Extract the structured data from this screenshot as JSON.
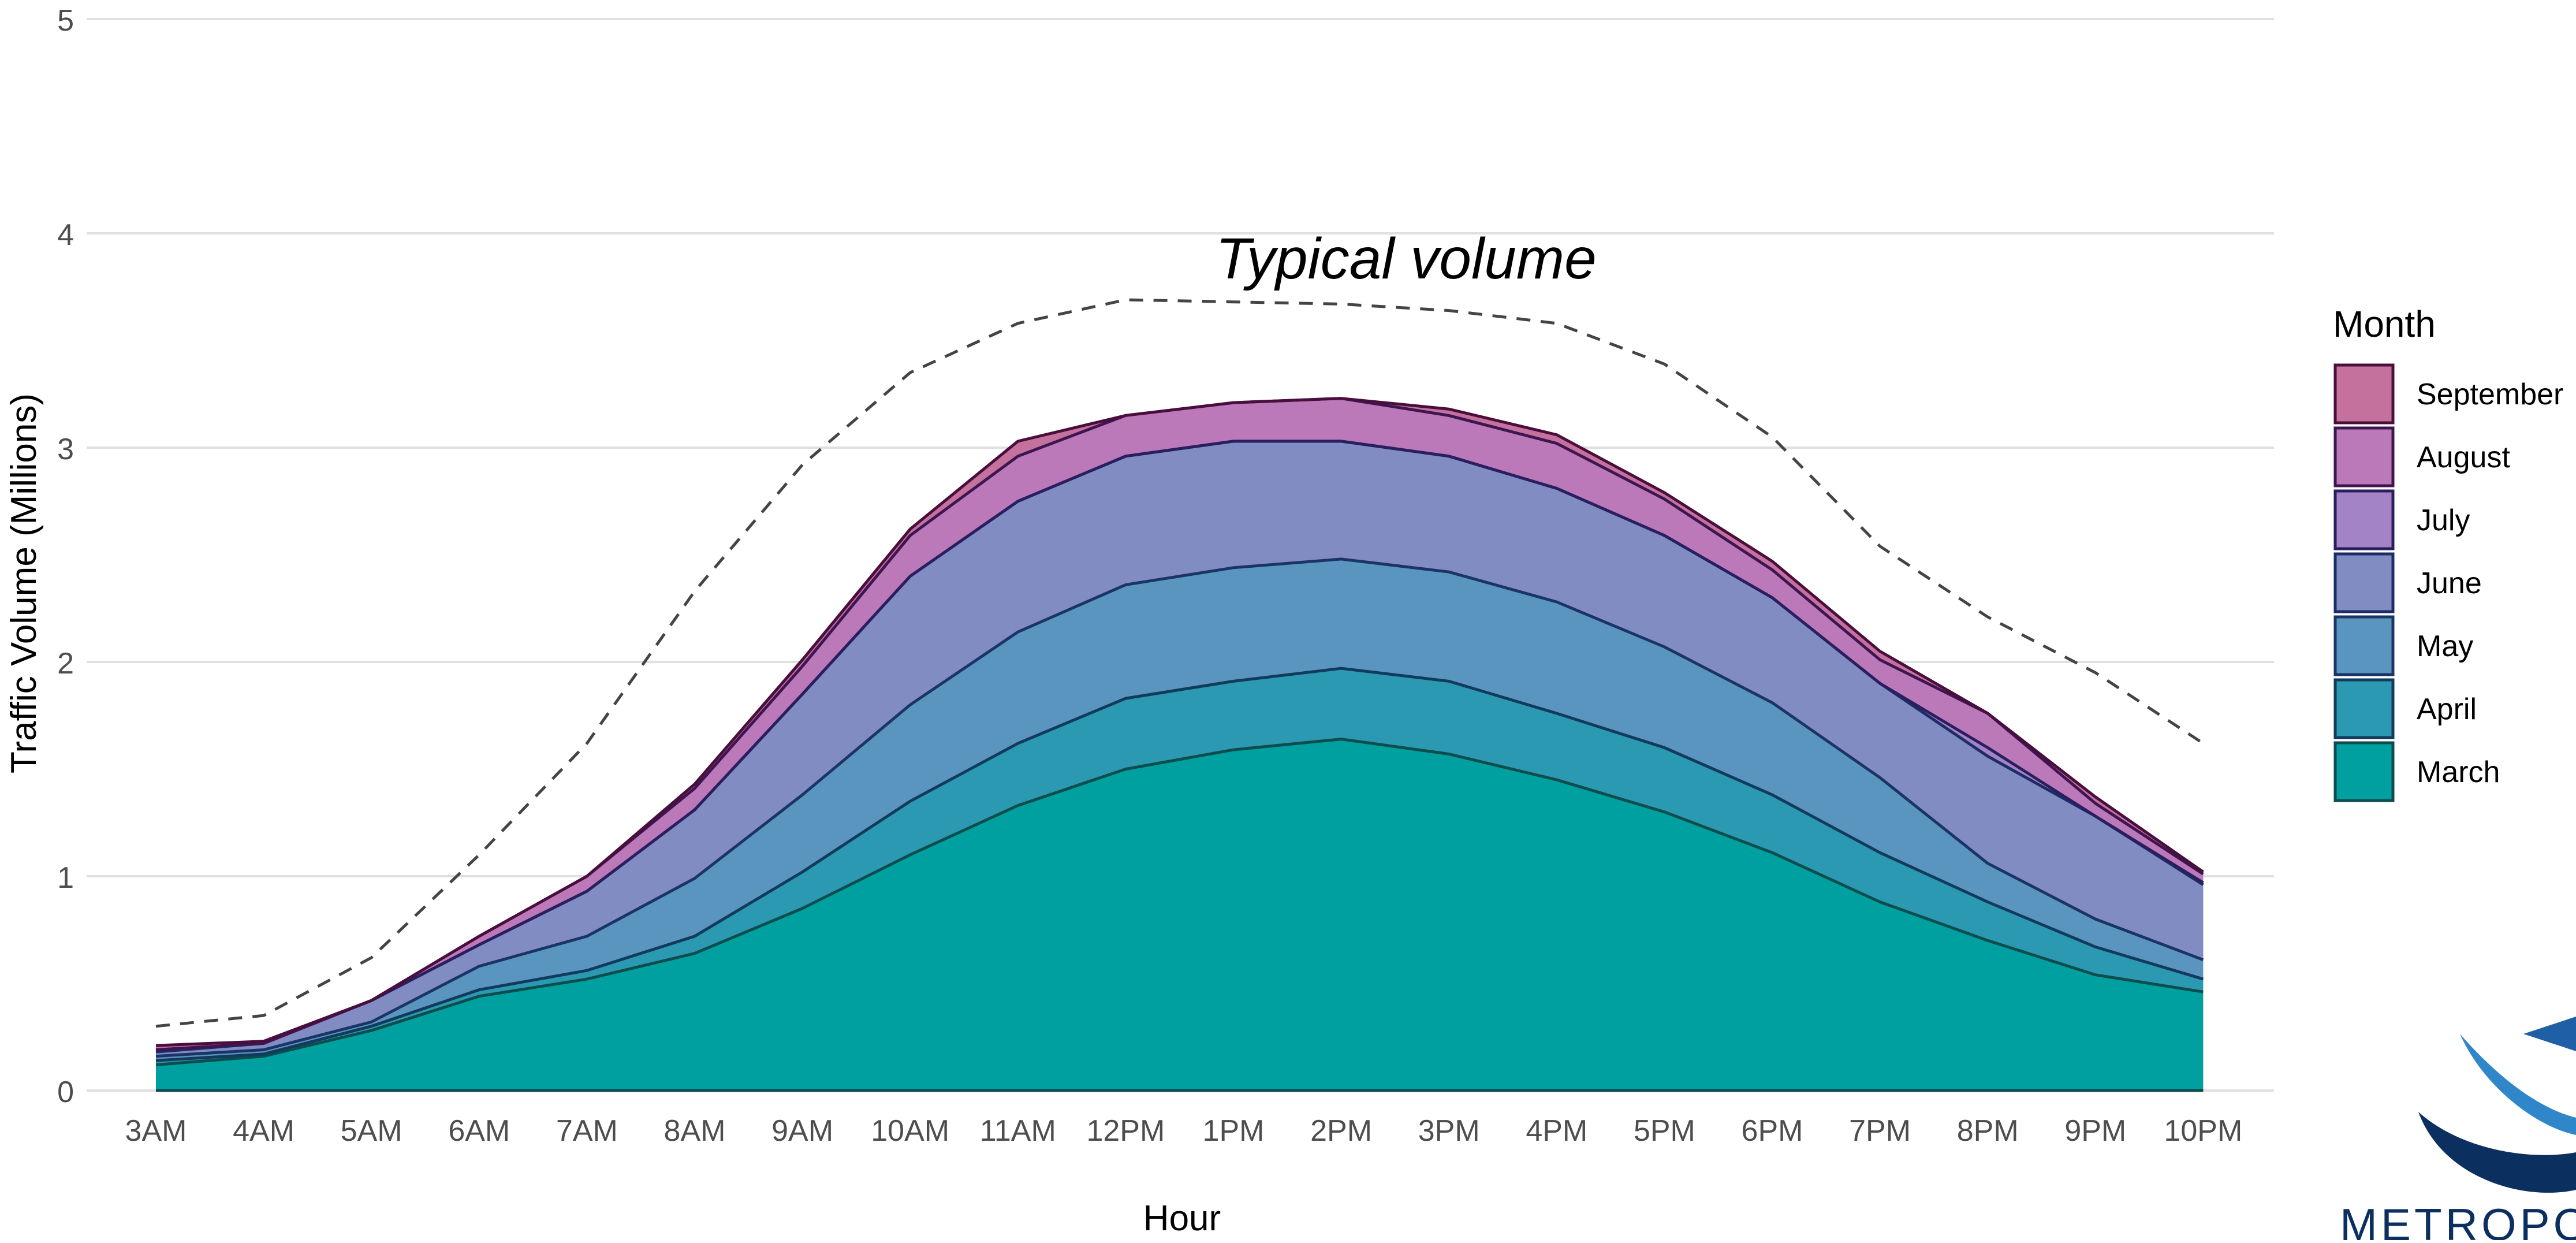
{
  "chart_data": {
    "type": "area",
    "stacked": true,
    "title": "",
    "xlabel": "Hour",
    "ylabel": "Traffic Volume (Millions)",
    "ylim": [
      0,
      5
    ],
    "yticks": [
      0,
      1,
      2,
      3,
      4,
      5
    ],
    "grid": true,
    "legend_position": "right",
    "legend_title": "Month",
    "categories": [
      "3AM",
      "4AM",
      "5AM",
      "6AM",
      "7AM",
      "8AM",
      "9AM",
      "10AM",
      "11AM",
      "12PM",
      "1PM",
      "2PM",
      "3PM",
      "4PM",
      "5PM",
      "6PM",
      "7PM",
      "8PM",
      "9PM",
      "10PM"
    ],
    "series": [
      {
        "name": "March",
        "color": "#00a0a0",
        "values": [
          0.12,
          0.16,
          0.28,
          0.44,
          0.52,
          0.64,
          0.85,
          1.1,
          1.33,
          1.5,
          1.59,
          1.64,
          1.57,
          1.45,
          1.3,
          1.11,
          0.88,
          0.7,
          0.54,
          0.46
        ]
      },
      {
        "name": "April",
        "color": "#2a99b1",
        "values": [
          0.02,
          0.01,
          0.02,
          0.03,
          0.04,
          0.08,
          0.17,
          0.25,
          0.29,
          0.33,
          0.32,
          0.33,
          0.34,
          0.31,
          0.3,
          0.27,
          0.23,
          0.18,
          0.13,
          0.06
        ]
      },
      {
        "name": "May",
        "color": "#5a95c0",
        "values": [
          0.02,
          0.02,
          0.02,
          0.11,
          0.16,
          0.27,
          0.36,
          0.45,
          0.52,
          0.53,
          0.53,
          0.51,
          0.51,
          0.52,
          0.47,
          0.43,
          0.35,
          0.18,
          0.13,
          0.09
        ]
      },
      {
        "name": "June",
        "color": "#818cc3",
        "values": [
          0.02,
          0.03,
          0.1,
          0.1,
          0.21,
          0.32,
          0.47,
          0.6,
          0.61,
          0.6,
          0.59,
          0.55,
          0.54,
          0.53,
          0.52,
          0.49,
          0.44,
          0.5,
          0.48,
          0.35
        ]
      },
      {
        "name": "July",
        "color": "#a382c5",
        "values": [
          0.01,
          0.0,
          0.0,
          0.0,
          0.0,
          0.0,
          0.0,
          0.0,
          0.0,
          0.0,
          0.0,
          0.0,
          0.0,
          0.0,
          0.0,
          0.0,
          0.0,
          0.04,
          0.0,
          0.01
        ]
      },
      {
        "name": "August",
        "color": "#bb79b9",
        "values": [
          0.0,
          0.0,
          0.0,
          0.04,
          0.07,
          0.1,
          0.13,
          0.19,
          0.21,
          0.19,
          0.18,
          0.2,
          0.19,
          0.21,
          0.17,
          0.13,
          0.11,
          0.16,
          0.06,
          0.04
        ]
      },
      {
        "name": "September",
        "color": "#c4719e",
        "values": [
          0.02,
          0.01,
          0.0,
          0.0,
          0.0,
          0.02,
          0.03,
          0.03,
          0.07,
          0.0,
          0.0,
          0.0,
          0.03,
          0.04,
          0.03,
          0.04,
          0.04,
          0.0,
          0.03,
          0.01
        ]
      }
    ],
    "typical": {
      "label": "Typical volume",
      "values": [
        0.3,
        0.35,
        0.62,
        1.1,
        1.62,
        2.33,
        2.92,
        3.35,
        3.58,
        3.69,
        3.68,
        3.67,
        3.64,
        3.58,
        3.39,
        3.05,
        2.54,
        2.21,
        1.95,
        1.62
      ]
    }
  },
  "logo": {
    "alt": "METROPOLITAN logo",
    "visible_text": "METROPOL"
  }
}
